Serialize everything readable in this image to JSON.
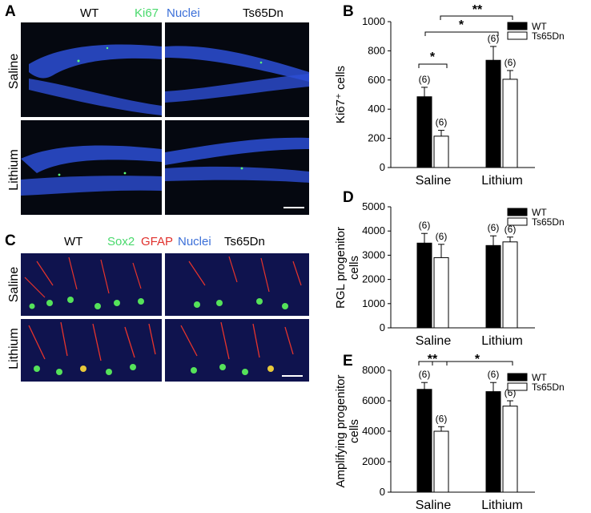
{
  "panels": {
    "a": {
      "letter": "A",
      "header_wt": "WT",
      "header_stain1": "Ki67",
      "header_stain2": "Nuclei",
      "header_ts": "Ts65Dn",
      "row1": "Saline",
      "row2": "Lithium",
      "stain1_color": "#49d96c",
      "stain2_color": "#3b6fd8"
    },
    "c": {
      "letter": "C",
      "header_wt": "WT",
      "header_stain1": "Sox2",
      "header_stain2": "GFAP",
      "header_stain3": "Nuclei",
      "header_ts": "Ts65Dn",
      "row1": "Saline",
      "row2": "Lithium",
      "stain1_color": "#49d96c",
      "stain2_color": "#e0302c",
      "stain3_color": "#3b6fd8"
    }
  },
  "chart_data": [
    {
      "letter": "B",
      "type": "bar",
      "ylabel": "Ki67⁺ cells",
      "categories": [
        "Saline",
        "Lithium"
      ],
      "ylim": [
        0,
        1000
      ],
      "yticks": [
        "0",
        "200",
        "400",
        "600",
        "800",
        "1000"
      ],
      "series": [
        {
          "name": "WT",
          "values": [
            485,
            735
          ],
          "errors": [
            65,
            95
          ],
          "n_labels": [
            "(6)",
            "(6)"
          ],
          "color": "#000000"
        },
        {
          "name": "Ts65Dn",
          "values": [
            215,
            605
          ],
          "errors": [
            40,
            60
          ],
          "n_labels": [
            "(6)",
            "(6)"
          ],
          "color": "#ffffff"
        }
      ],
      "significance": [
        {
          "label": "*"
        },
        {
          "label": "*"
        },
        {
          "label": "**"
        }
      ]
    },
    {
      "letter": "D",
      "type": "bar",
      "ylabel_lines": [
        "RGL progenitor",
        "cells"
      ],
      "categories": [
        "Saline",
        "Lithium"
      ],
      "ylim": [
        0,
        5000
      ],
      "yticks": [
        "0",
        "1000",
        "2000",
        "3000",
        "4000",
        "5000"
      ],
      "series": [
        {
          "name": "WT",
          "values": [
            3500,
            3400
          ],
          "errors": [
            400,
            400
          ],
          "n_labels": [
            "(6)",
            "(6)"
          ],
          "color": "#000000"
        },
        {
          "name": "Ts65Dn",
          "values": [
            2900,
            3550
          ],
          "errors": [
            550,
            200
          ],
          "n_labels": [
            "(6)",
            "(6)"
          ],
          "color": "#ffffff"
        }
      ],
      "significance": []
    },
    {
      "letter": "E",
      "type": "bar",
      "ylabel_lines": [
        "Amplifying progenitor",
        "cells"
      ],
      "categories": [
        "Saline",
        "Lithium"
      ],
      "ylim": [
        0,
        8000
      ],
      "yticks": [
        "0",
        "2000",
        "4000",
        "6000",
        "8000"
      ],
      "series": [
        {
          "name": "WT",
          "values": [
            6750,
            6600
          ],
          "errors": [
            450,
            600
          ],
          "n_labels": [
            "(6)",
            "(6)"
          ],
          "color": "#000000"
        },
        {
          "name": "Ts65Dn",
          "values": [
            4000,
            5650
          ],
          "errors": [
            300,
            350
          ],
          "n_labels": [
            "(6)",
            "(6)"
          ],
          "color": "#ffffff"
        }
      ],
      "significance": [
        {
          "label": "**"
        },
        {
          "label": "*"
        }
      ]
    }
  ]
}
